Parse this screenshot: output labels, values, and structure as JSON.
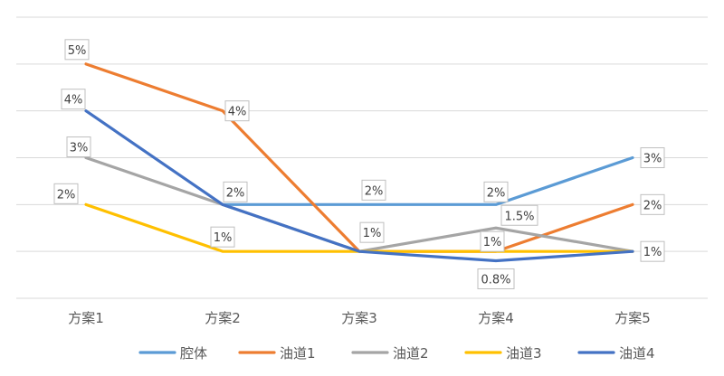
{
  "chart_data": {
    "type": "line",
    "categories": [
      "方案1",
      "方案2",
      "方案3",
      "方案4",
      "方案5"
    ],
    "ylim": [
      0,
      0.06
    ],
    "grid": true,
    "legend": "bottom",
    "series": [
      {
        "name": "腔体",
        "color": "#5b9bd5",
        "values": [
          null,
          0.02,
          0.02,
          0.02,
          0.03
        ],
        "labels": [
          "",
          "2%",
          "2%",
          "2%",
          "3%"
        ]
      },
      {
        "name": "油道1",
        "color": "#ed7d31",
        "values": [
          0.05,
          0.04,
          0.01,
          0.01,
          0.02
        ],
        "labels": [
          "5%",
          "4%",
          "",
          "1%",
          "2%"
        ]
      },
      {
        "name": "油道2",
        "color": "#a5a5a5",
        "values": [
          0.03,
          0.02,
          0.01,
          0.015,
          0.01
        ],
        "labels": [
          "3%",
          "",
          "",
          "1.5%",
          ""
        ]
      },
      {
        "name": "油道3",
        "color": "#ffc000",
        "values": [
          0.02,
          0.01,
          0.01,
          0.01,
          0.01
        ],
        "labels": [
          "2%",
          "1%",
          "1%",
          "",
          "1%"
        ]
      },
      {
        "name": "油道4",
        "color": "#4472c4",
        "values": [
          0.04,
          0.02,
          0.01,
          0.008,
          0.01
        ],
        "labels": [
          "4%",
          "",
          "",
          "0.8%",
          ""
        ]
      }
    ]
  }
}
